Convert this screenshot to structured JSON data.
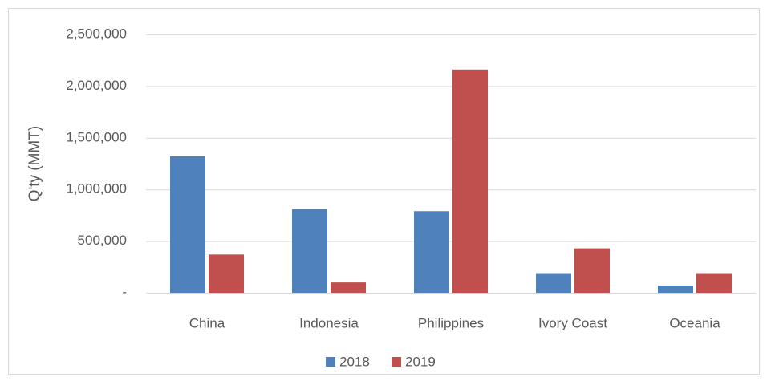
{
  "chart_data": {
    "type": "bar",
    "y_label": "Q'ty (MMT)",
    "categories": [
      "China",
      "Indonesia",
      "Philippines",
      "Ivory Coast",
      "Oceania"
    ],
    "series": [
      {
        "name": "2018",
        "color": "#4f81bd",
        "values": [
          1320000,
          810000,
          790000,
          190000,
          70000
        ]
      },
      {
        "name": "2019",
        "color": "#c0504d",
        "values": [
          370000,
          100000,
          2160000,
          430000,
          190000
        ]
      }
    ],
    "ylim": [
      0,
      2500000
    ],
    "yticks": [
      {
        "value": 0,
        "label": "-"
      },
      {
        "value": 500000,
        "label": "500,000"
      },
      {
        "value": 1000000,
        "label": "1,000,000"
      },
      {
        "value": 1500000,
        "label": "1,500,000"
      },
      {
        "value": 2000000,
        "label": "2,000,000"
      },
      {
        "value": 2500000,
        "label": "2,500,000"
      }
    ],
    "grid": true,
    "legend": "bottom"
  }
}
